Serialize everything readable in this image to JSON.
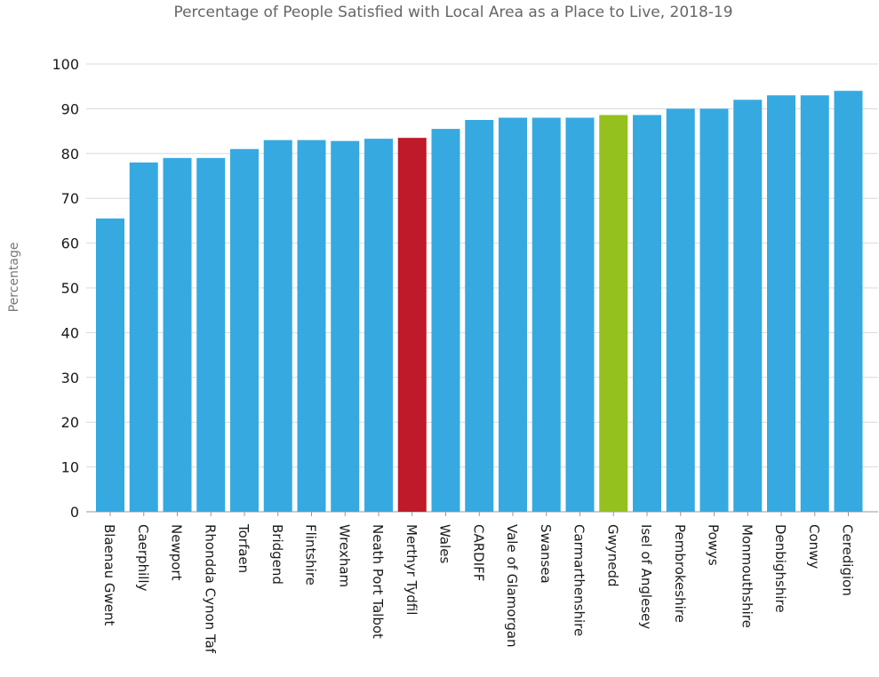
{
  "chart_data": {
    "type": "bar",
    "title": "Percentage of People Satisfied with Local Area as a Place to Live, 2018-19",
    "xlabel": "",
    "ylabel": "Percentage",
    "ylim": [
      0,
      100
    ],
    "yticks": [
      0,
      10,
      20,
      30,
      40,
      50,
      60,
      70,
      80,
      90,
      100
    ],
    "grid": true,
    "legend": "none",
    "categories": [
      "Blaenau Gwent",
      "Caerphilly",
      "Newport",
      "Rhondda Cynon Taf",
      "Torfaen",
      "Bridgend",
      "Flintshire",
      "Wrexham",
      "Neath Port Talbot",
      "Merthyr Tydfil",
      "Wales",
      "CARDIFF",
      "Vale of Glamorgan",
      "Swansea",
      "Carmarthenshire",
      "Gwynedd",
      "Isel of Anglesey",
      "Pembrokeshire",
      "Powys",
      "Monmouthshire",
      "Denbighshire",
      "Conwy",
      "Ceredigion"
    ],
    "values": [
      65.5,
      78,
      79,
      79,
      81,
      83,
      83,
      82.8,
      83.3,
      83.5,
      85.5,
      87.5,
      88,
      88,
      88,
      88.6,
      88.6,
      90,
      90,
      92,
      93,
      93,
      94
    ],
    "colors": {
      "default": "#36a9e1",
      "highlight_merthyr": "#be1a29",
      "highlight_gwynedd": "#95c11f"
    },
    "bar_colors": [
      "default",
      "default",
      "default",
      "default",
      "default",
      "default",
      "default",
      "default",
      "default",
      "highlight_merthyr",
      "default",
      "default",
      "default",
      "default",
      "default",
      "highlight_gwynedd",
      "default",
      "default",
      "default",
      "default",
      "default",
      "default",
      "default"
    ]
  }
}
